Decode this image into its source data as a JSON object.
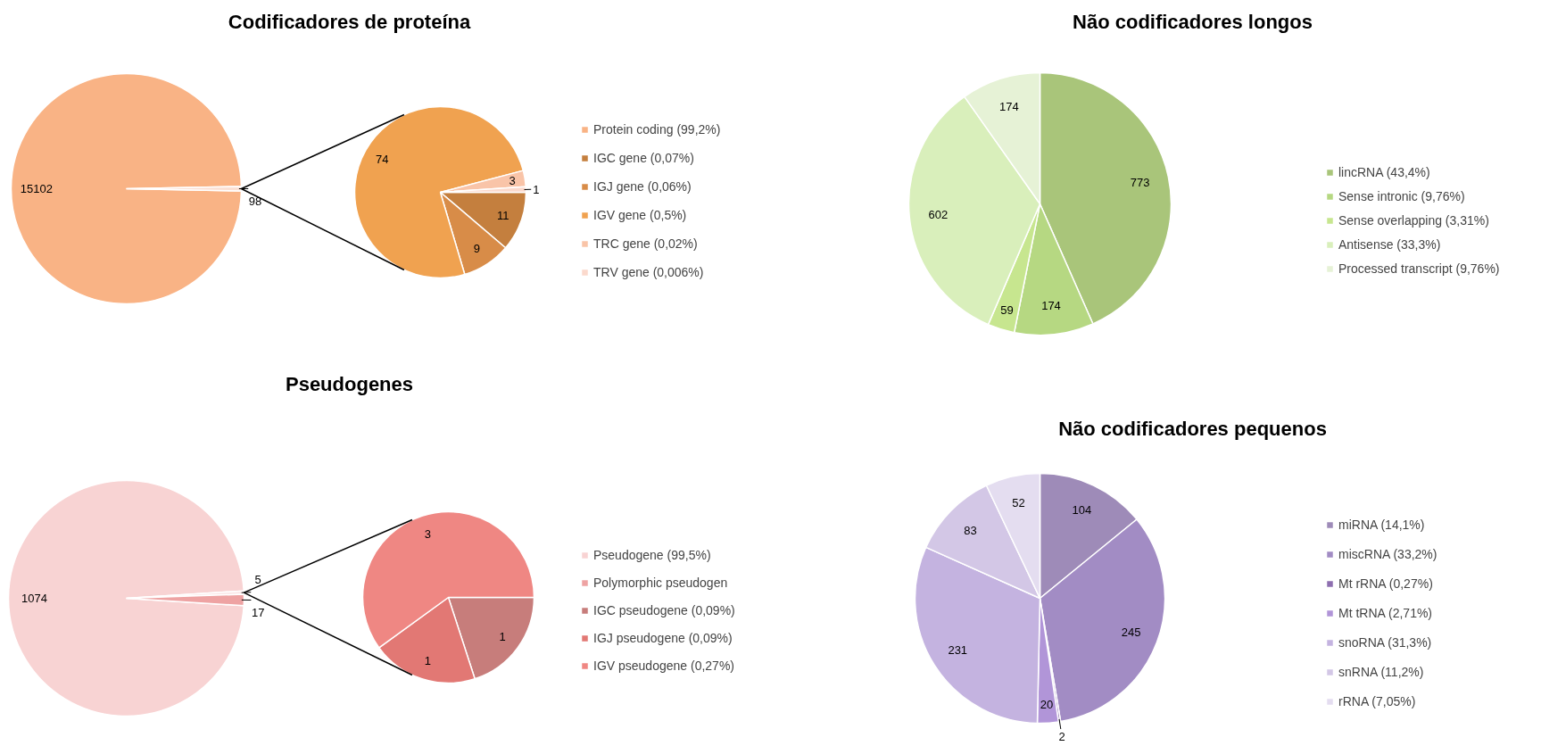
{
  "chart_data": [
    {
      "type": "pie",
      "title": "Codificadores de proteína",
      "categories": [
        "Protein coding (99,2%)",
        null
      ],
      "values": [
        15102,
        98
      ],
      "colors": [
        "#f9b385",
        "#fbe0d4"
      ],
      "data_labels": true,
      "legend": "right"
    },
    {
      "type": "pie",
      "categories": [
        "IGC gene (0,07%)",
        "IGJ gene (0,06%)",
        "IGV gene (0,5%)",
        "TRC gene (0,02%)",
        "TRV gene (0,006%)"
      ],
      "values": [
        11,
        9,
        74,
        3,
        1
      ],
      "colors": [
        "#c47f3e",
        "#d88c48",
        "#f0a250",
        "#f9c4a8",
        "#fbd9cc"
      ],
      "data_labels": true,
      "legend": "right"
    },
    {
      "type": "pie",
      "title": "Não codificadores longos",
      "categories": [
        "lincRNA (43,4%)",
        "Sense intronic (9,76%)",
        "Sense overlapping (3,31%)",
        "Antisense (33,3%)",
        "Processed transcript (9,76%)"
      ],
      "values": [
        773,
        174,
        59,
        602,
        174
      ],
      "colors": [
        "#a9c57a",
        "#b6d882",
        "#c7e68f",
        "#d9efbb",
        "#e6f2d6"
      ],
      "data_labels": true,
      "legend": "right"
    },
    {
      "type": "pie",
      "title": "Pseudogenes",
      "categories": [
        "Pseudogene (99,5%)",
        null,
        "Polymorphic pseudogen"
      ],
      "values": [
        1074,
        5,
        17
      ],
      "colors": [
        "#f8d3d3",
        "#fbe6e6",
        "#eea3a3"
      ],
      "data_labels": true,
      "legend": "right"
    },
    {
      "type": "pie",
      "categories": [
        "IGC pseudogene (0,09%)",
        "IGJ pseudogene (0,09%)",
        "IGV pseudogene (0,27%)"
      ],
      "values": [
        1,
        1,
        3
      ],
      "colors": [
        "#c77d7b",
        "#e27874",
        "#ef8783"
      ],
      "data_labels": true,
      "legend": "right"
    },
    {
      "type": "pie",
      "title": "Não codificadores pequenos",
      "categories": [
        "miRNA (14,1%)",
        "miscRNA (33,2%)",
        "Mt rRNA (0,27%)",
        "Mt tRNA (2,71%)",
        "snoRNA (31,3%)",
        "snRNA (11,2%)",
        "rRNA (7,05%)"
      ],
      "values": [
        104,
        245,
        2,
        20,
        231,
        83,
        52
      ],
      "colors": [
        "#9e8bb8",
        "#a28cc4",
        "#8e6fb0",
        "#b195d8",
        "#c4b3e0",
        "#d3c7e6",
        "#e4ddf0"
      ],
      "data_labels": true,
      "legend": "right"
    }
  ]
}
